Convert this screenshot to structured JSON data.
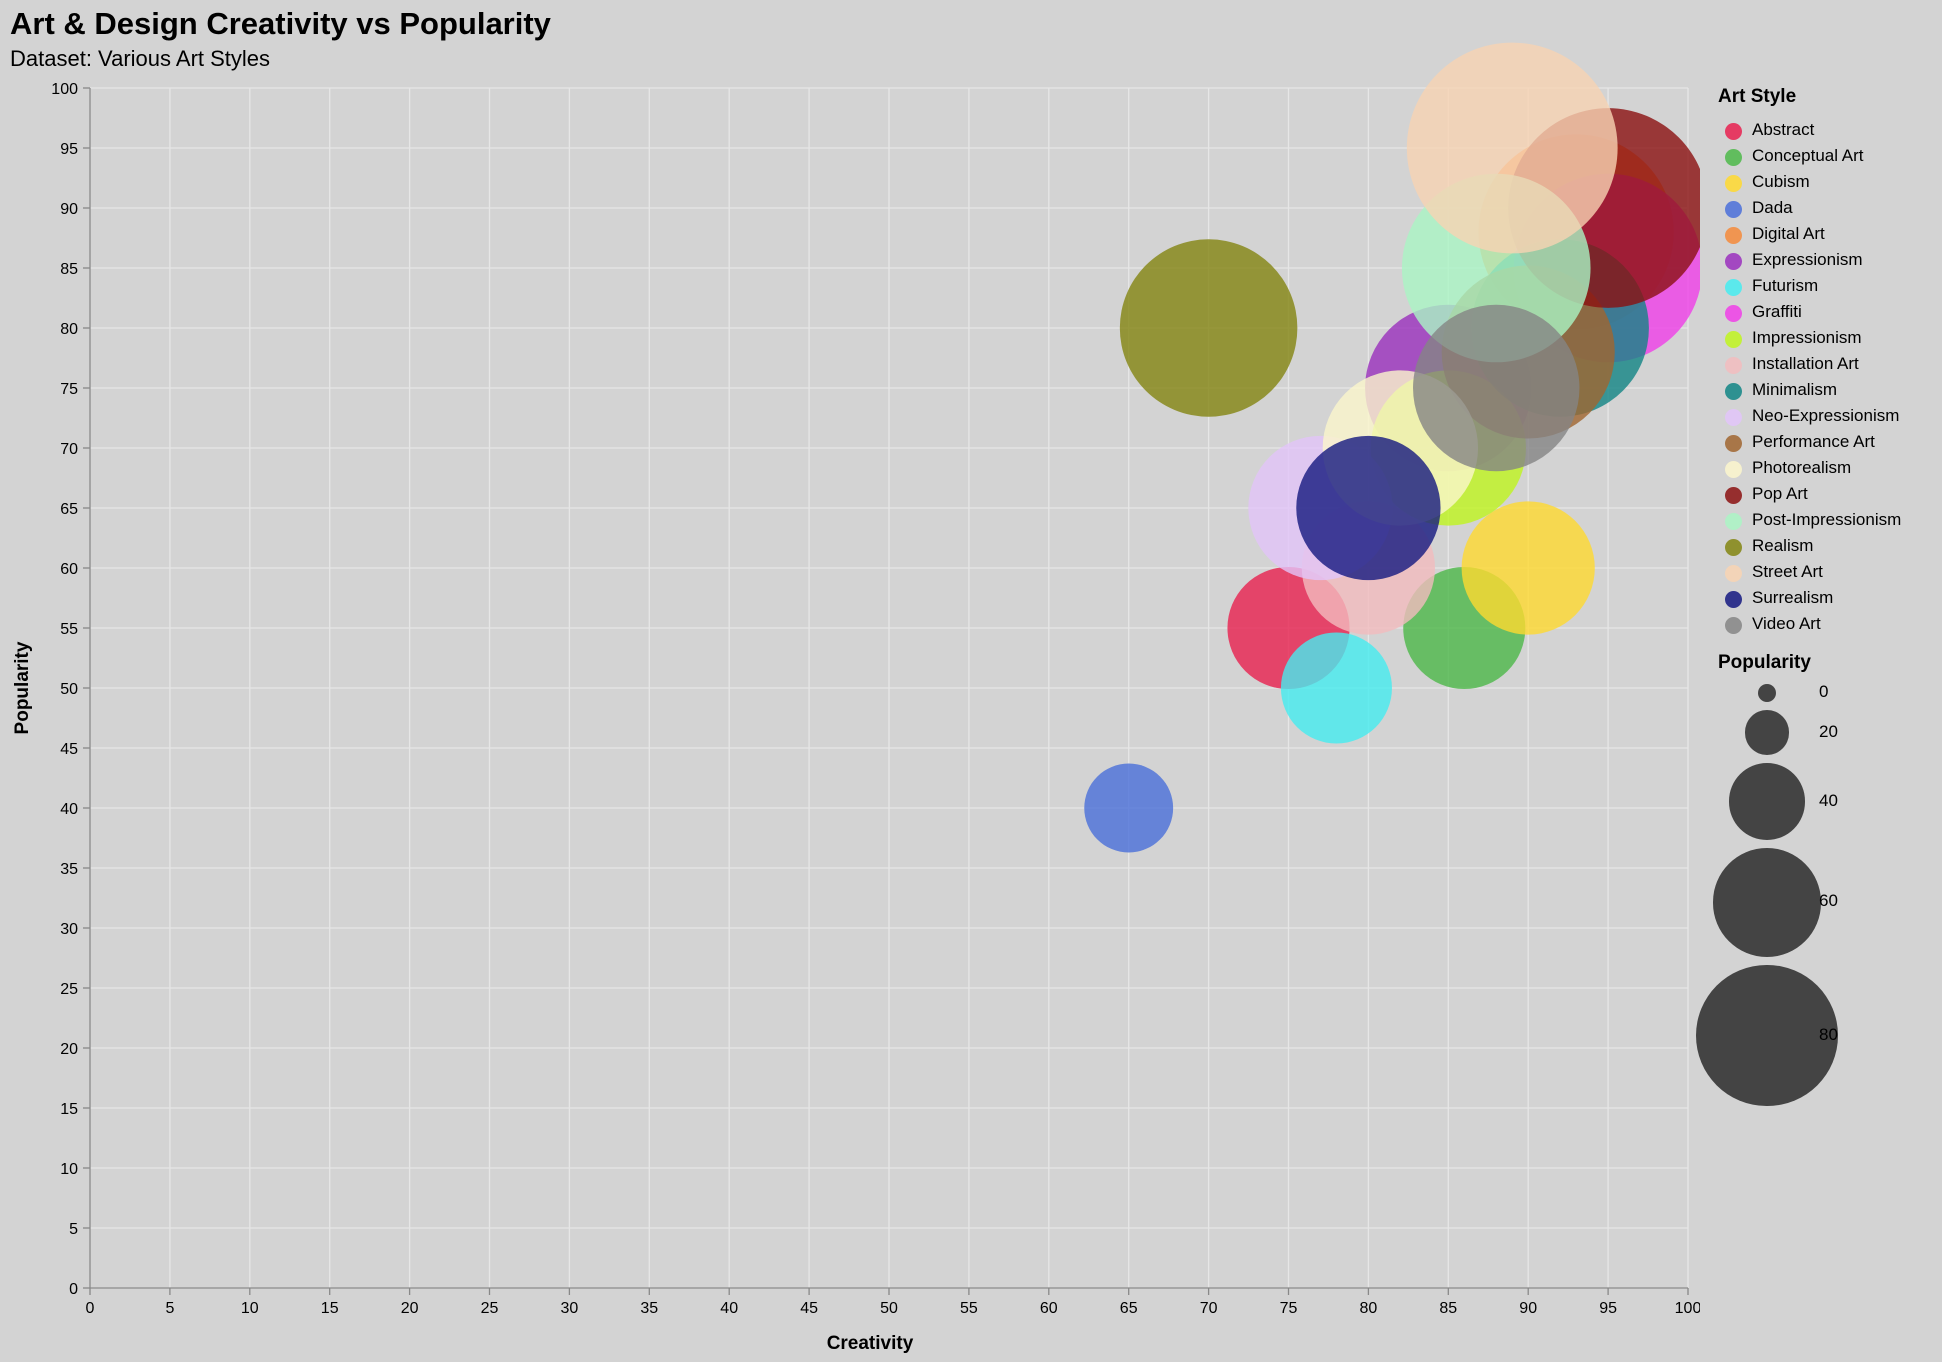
{
  "chart_data": {
    "type": "scatter",
    "title": "Art & Design Creativity vs Popularity",
    "subtitle": "Dataset: Various Art Styles",
    "xlabel": "Creativity",
    "ylabel": "Popularity",
    "xlim": [
      0,
      100
    ],
    "ylim": [
      0,
      100
    ],
    "tick_step": 5,
    "grid": true,
    "legend_position": "right",
    "color_legend_title": "Art Style",
    "size_legend_title": "Popularity",
    "size_legend_values": [
      0,
      20,
      40,
      60,
      80
    ],
    "size_legend_labels": [
      "0",
      "20",
      "40",
      "60",
      "80"
    ],
    "x_tick_labels": [
      "0",
      "5",
      "10",
      "15",
      "20",
      "25",
      "30",
      "35",
      "40",
      "45",
      "50",
      "55",
      "60",
      "65",
      "70",
      "75",
      "80",
      "85",
      "90",
      "95",
      "100"
    ],
    "y_tick_labels": [
      "0",
      "5",
      "10",
      "15",
      "20",
      "25",
      "30",
      "35",
      "40",
      "45",
      "50",
      "55",
      "60",
      "65",
      "70",
      "75",
      "80",
      "85",
      "90",
      "95",
      "100"
    ],
    "points": [
      {
        "style": "Abstract",
        "creativity": 75,
        "popularity": 55,
        "color": "#e8204f"
      },
      {
        "style": "Conceptual Art",
        "creativity": 86,
        "popularity": 55,
        "color": "#4cb849"
      },
      {
        "style": "Cubism",
        "creativity": 90,
        "popularity": 60,
        "color": "#ffd92f"
      },
      {
        "style": "Dada",
        "creativity": 65,
        "popularity": 40,
        "color": "#4a6fd9"
      },
      {
        "style": "Digital Art",
        "creativity": 93,
        "popularity": 88,
        "color": "#f5893a"
      },
      {
        "style": "Expressionism",
        "creativity": 85,
        "popularity": 75,
        "color": "#9a2fbd"
      },
      {
        "style": "Futurism",
        "creativity": 78,
        "popularity": 50,
        "color": "#45ecf0"
      },
      {
        "style": "Graffiti",
        "creativity": 95,
        "popularity": 85,
        "color": "#f03ee8"
      },
      {
        "style": "Impressionism",
        "creativity": 85,
        "popularity": 70,
        "color": "#bff51e"
      },
      {
        "style": "Installation Art",
        "creativity": 80,
        "popularity": 60,
        "color": "#f2bcbe"
      },
      {
        "style": "Minimalism",
        "creativity": 92,
        "popularity": 80,
        "color": "#118585"
      },
      {
        "style": "Neo-Expressionism",
        "creativity": 77,
        "popularity": 65,
        "color": "#e2c4f9"
      },
      {
        "style": "Performance Art",
        "creativity": 90,
        "popularity": 78,
        "color": "#a0652f"
      },
      {
        "style": "Photorealism",
        "creativity": 82,
        "popularity": 70,
        "color": "#fbf6cc"
      },
      {
        "style": "Pop Art",
        "creativity": 95,
        "popularity": 90,
        "color": "#8b1010"
      },
      {
        "style": "Post-Impressionism",
        "creativity": 88,
        "popularity": 85,
        "color": "#aaf5c4"
      },
      {
        "style": "Realism",
        "creativity": 70,
        "popularity": 80,
        "color": "#838510"
      },
      {
        "style": "Street Art",
        "creativity": 89,
        "popularity": 95,
        "color": "#f8d3b3"
      },
      {
        "style": "Surrealism",
        "creativity": 80,
        "popularity": 65,
        "color": "#141880"
      },
      {
        "style": "Video Art",
        "creativity": 88,
        "popularity": 75,
        "color": "#858585"
      }
    ]
  }
}
